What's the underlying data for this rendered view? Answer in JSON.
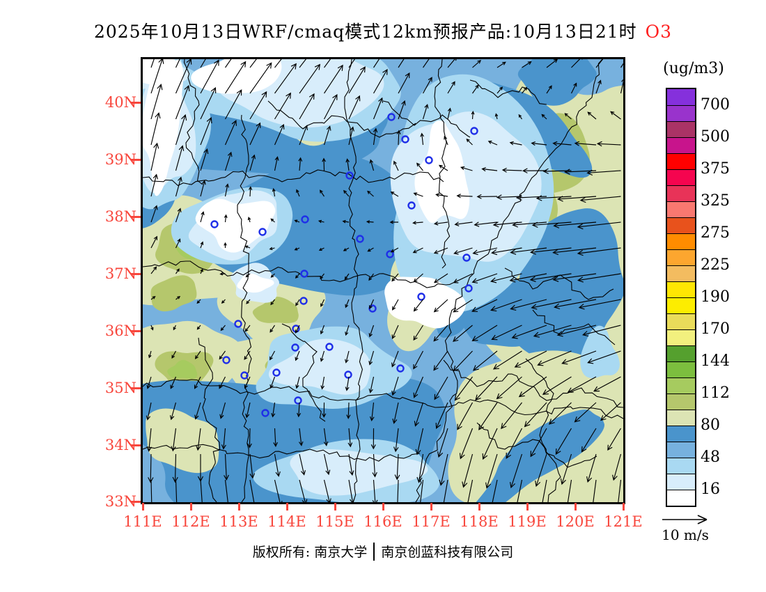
{
  "title": {
    "main": "2025年10月13日WRF/cmaq模式12km预报产品:10月13日21时",
    "species": "O3",
    "species_color": "#FF2020",
    "text_color": "#000000"
  },
  "map": {
    "lat_ticks": [
      "40N",
      "39N",
      "38N",
      "37N",
      "36N",
      "35N",
      "34N",
      "33N"
    ],
    "lon_ticks": [
      "111E",
      "112E",
      "113E",
      "114E",
      "115E",
      "116E",
      "117E",
      "118E",
      "119E",
      "120E",
      "121E"
    ],
    "tick_color": "#F8463C",
    "city_markers": [
      [
        103,
        237
      ],
      [
        172,
        248
      ],
      [
        233,
        230
      ],
      [
        297,
        167
      ],
      [
        312,
        258
      ],
      [
        232,
        308
      ],
      [
        357,
        83
      ],
      [
        377,
        115
      ],
      [
        411,
        145
      ],
      [
        476,
        103
      ],
      [
        386,
        210
      ],
      [
        355,
        280
      ],
      [
        465,
        285
      ],
      [
        400,
        341
      ],
      [
        468,
        329
      ],
      [
        370,
        444
      ],
      [
        231,
        347
      ],
      [
        330,
        358
      ],
      [
        137,
        380
      ],
      [
        220,
        387
      ],
      [
        219,
        414
      ],
      [
        268,
        413
      ],
      [
        120,
        432
      ],
      [
        295,
        453
      ],
      [
        146,
        454
      ],
      [
        192,
        450
      ],
      [
        223,
        490
      ],
      [
        176,
        508
      ]
    ]
  },
  "map_palette": {
    "white": "#FFFFFF",
    "pale_blue": "#D8EDFB",
    "light_blue": "#A9D9F2",
    "medium_blue": "#77B1DE",
    "deep_blue": "#4A94CC",
    "pale_green": "#DCE4B4",
    "olive_green": "#B5C76C",
    "yellow_green": "#A6CB5F",
    "boundary": "#000000",
    "marker_blue": "#1F2FE8",
    "arrow_black": "#000000"
  },
  "colorbar": {
    "unit": "(ug/m3)",
    "labels": [
      "700",
      "500",
      "375",
      "325",
      "275",
      "225",
      "190",
      "170",
      "144",
      "112",
      "80",
      "48",
      "16"
    ],
    "colors_top_to_bottom": [
      "#8530DC",
      "#9933CC",
      "#AA3366",
      "#C8148C",
      "#FF0000",
      "#F5054F",
      "#E83358",
      "#F97870",
      "#E8521C",
      "#FF8C00",
      "#FCA62F",
      "#F3BC60",
      "#FFE603",
      "#FDED00",
      "#EADC5A",
      "#F2F07E",
      "#55A02E",
      "#7CBE3E",
      "#A6CB5F",
      "#B5C76C",
      "#DCE4B4",
      "#4A94CC",
      "#77B1DE",
      "#A9D9F2",
      "#D8EDFB",
      "#FFFFFF"
    ]
  },
  "wind_legend": {
    "label": "10 m/s"
  },
  "footer": {
    "left": "版权所有: 南京大学",
    "right": "南京创蓝科技有限公司"
  }
}
